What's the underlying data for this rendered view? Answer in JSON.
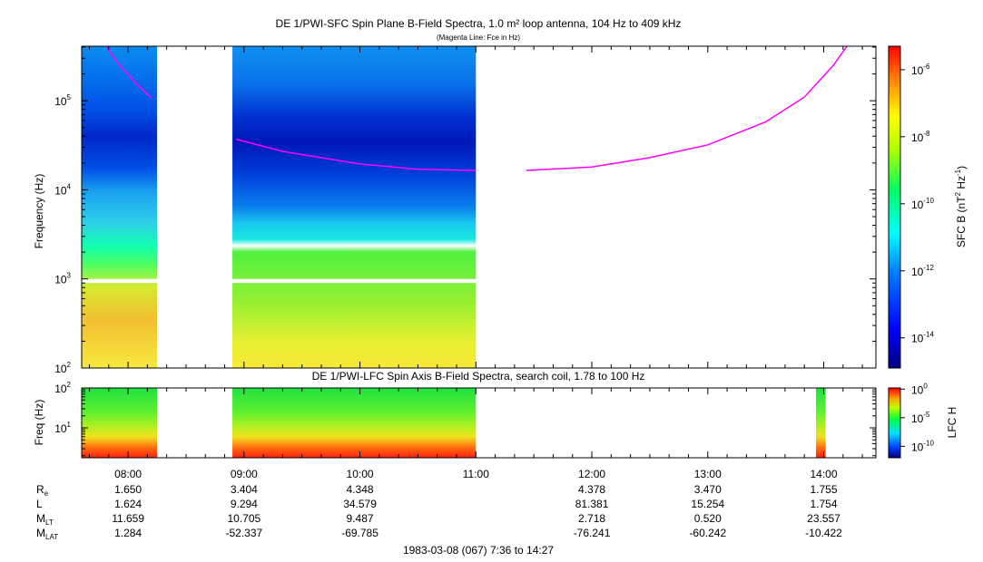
{
  "chart_data": [
    {
      "type": "heatmap",
      "title": "DE 1/PWI-SFC  Spin Plane B-Field Spectra, 1.0 m² loop antenna, 104 Hz to 409 kHz",
      "subtitle": "(Magenta Line: Fce in Hz)",
      "ylabel": "Frequency (Hz)",
      "yscale": "log",
      "ylim": [
        100,
        409000
      ],
      "yticks": [
        {
          "value": 100,
          "base": "10",
          "exp": "2"
        },
        {
          "value": 1000,
          "base": "10",
          "exp": "3"
        },
        {
          "value": 10000,
          "base": "10",
          "exp": "4"
        },
        {
          "value": 100000,
          "base": "10",
          "exp": "5"
        }
      ],
      "colorbar": {
        "label": "SFC B (nT",
        "label_exp1": "2",
        "label_mid": " Hz",
        "label_exp2": "-1",
        "label_end": ")",
        "scale": "log",
        "ticks": [
          {
            "value": 1e-14,
            "base": "10",
            "exp": "-14"
          },
          {
            "value": 1e-12,
            "base": "10",
            "exp": "-12"
          },
          {
            "value": 1e-10,
            "base": "10",
            "exp": "-10"
          },
          {
            "value": 1e-08,
            "base": "10",
            "exp": "-8"
          },
          {
            "value": 1e-06,
            "base": "10",
            "exp": "-6"
          }
        ]
      },
      "data_intervals": [
        [
          "07:36",
          "08:15"
        ],
        [
          "08:54",
          "11:00"
        ]
      ],
      "fce_line": [
        {
          "segment": [
            [
              "07:49",
              400000
            ],
            [
              "07:55",
              260000
            ],
            [
              "08:05",
              150000
            ],
            [
              "08:12",
              108000
            ]
          ]
        },
        {
          "segment": [
            [
              "08:56",
              37000
            ],
            [
              "09:20",
              27000
            ],
            [
              "10:00",
              19500
            ],
            [
              "10:30",
              17000
            ],
            [
              "11:00",
              16500
            ]
          ]
        },
        {
          "segment": [
            [
              "11:26",
              16500
            ],
            [
              "12:00",
              18000
            ],
            [
              "12:30",
              23000
            ],
            [
              "13:00",
              32000
            ],
            [
              "13:30",
              58000
            ],
            [
              "13:50",
              110000
            ],
            [
              "14:05",
              250000
            ],
            [
              "14:12",
              409000
            ]
          ]
        }
      ]
    },
    {
      "type": "heatmap",
      "title": "DE 1/PWI-LFC  Spin Axis B-Field Spectra, search coil, 1.78 to 100 Hz",
      "ylabel": "Freq (Hz)",
      "yscale": "log",
      "ylim": [
        1.78,
        100
      ],
      "yticks": [
        {
          "value": 10,
          "base": "10",
          "exp": "1"
        },
        {
          "value": 100,
          "base": "10",
          "exp": "2"
        }
      ],
      "colorbar": {
        "label": "LFC H",
        "scale": "log",
        "ticks": [
          {
            "value": 1e-10,
            "base": "10",
            "exp": "-10"
          },
          {
            "value": 1e-05,
            "base": "10",
            "exp": "-5"
          },
          {
            "value": 1,
            "base": "10",
            "exp": "0"
          }
        ]
      },
      "data_intervals": [
        [
          "07:36",
          "08:15"
        ],
        [
          "08:54",
          "11:00"
        ],
        [
          "13:56",
          "14:01"
        ]
      ]
    }
  ],
  "time_axis": {
    "ticks": [
      "08:00",
      "09:00",
      "10:00",
      "11:00",
      "12:00",
      "13:00",
      "14:00"
    ],
    "xlim": [
      "07:36",
      "14:27"
    ]
  },
  "ephemeris": {
    "rows": [
      {
        "label": "R",
        "sub": "e",
        "values": [
          "1.650",
          "3.404",
          "4.348",
          "",
          "4.378",
          "3.470",
          "1.755"
        ]
      },
      {
        "label": "L",
        "sub": "",
        "values": [
          "1.624",
          "9.294",
          "34.579",
          "",
          "81.381",
          "15.254",
          "1.754"
        ]
      },
      {
        "label": "M",
        "sub": "LT",
        "values": [
          "11.659",
          "10.705",
          "9.487",
          "",
          "2.718",
          "0.520",
          "23.557"
        ]
      },
      {
        "label": "M",
        "sub": "LAT",
        "values": [
          "1.284",
          "-52.337",
          "-69.785",
          "",
          "-76.241",
          "-60.242",
          "-10.422"
        ]
      }
    ]
  },
  "footer": "1983-03-08 (067) 7:36 to 14:27",
  "colors": {
    "fce_line": "#ff00ff",
    "axis": "#000000"
  }
}
